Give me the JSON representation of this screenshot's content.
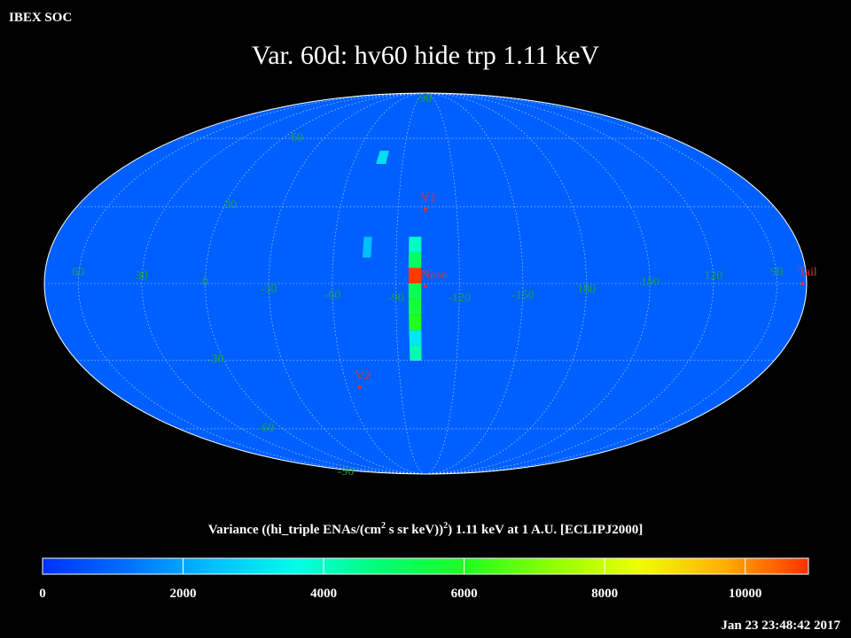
{
  "header": {
    "org": "IBEX SOC",
    "timestamp": "Jan 23 23:48:42 2017"
  },
  "chart_data": {
    "type": "skymap",
    "title": "Var. 60d: hv60 hide trp 1.11 keV",
    "background_value": 900,
    "lat_ticks": [
      90,
      60,
      30,
      -30,
      -60,
      -90
    ],
    "lon_ticks": [
      60,
      30,
      0,
      -30,
      -60,
      -90,
      -120,
      -150,
      180,
      150,
      120,
      90
    ],
    "cells": [
      {
        "lon": [
          -96,
          -102
        ],
        "lat": [
          18,
          12
        ],
        "value": 4000
      },
      {
        "lon": [
          -96,
          -102
        ],
        "lat": [
          12,
          6
        ],
        "value": 5000
      },
      {
        "lon": [
          -96,
          -102
        ],
        "lat": [
          6,
          0
        ],
        "value": 10800
      },
      {
        "lon": [
          -96,
          -102
        ],
        "lat": [
          0,
          -6
        ],
        "value": 5200
      },
      {
        "lon": [
          -96,
          -102
        ],
        "lat": [
          -6,
          -12
        ],
        "value": 5600
      },
      {
        "lon": [
          -96,
          -102
        ],
        "lat": [
          -12,
          -18
        ],
        "value": 6000
      },
      {
        "lon": [
          -96,
          -102
        ],
        "lat": [
          -18,
          -24
        ],
        "value": 3200
      },
      {
        "lon": [
          -96,
          -102
        ],
        "lat": [
          -24,
          -30
        ],
        "value": 4200
      },
      {
        "lon": [
          -74,
          -80
        ],
        "lat": [
          54,
          48
        ],
        "value": 3000
      },
      {
        "lon": [
          -74,
          -78
        ],
        "lat": [
          18,
          10
        ],
        "value": 2400
      }
    ],
    "markers": [
      {
        "name": "V1",
        "lon": -104,
        "lat": 29
      },
      {
        "name": "Nose",
        "lon": -104,
        "lat": -1
      },
      {
        "name": "V2",
        "lon": -67,
        "lat": -41
      },
      {
        "name": "Tail",
        "lon": 78,
        "lat": 0
      }
    ],
    "colorbar": {
      "label": [
        {
          "text": "Variance ((hi_triple ENAs/(cm",
          "sup": false
        },
        {
          "text": "2",
          "sup": true
        },
        {
          "text": " s sr keV))",
          "sup": false
        },
        {
          "text": "2",
          "sup": true
        },
        {
          "text": ") 1.11 keV at 1 A.U. [ECLIPJ2000]",
          "sup": false
        }
      ],
      "lim": [
        0,
        10900
      ],
      "ticks": [
        0,
        2000,
        4000,
        6000,
        8000,
        10000
      ],
      "colors": [
        "#0030ff",
        "#0070ff",
        "#00c0ff",
        "#00ffe8",
        "#00ff70",
        "#20ff20",
        "#90ff00",
        "#f0ff00",
        "#ffb000",
        "#ff3000"
      ]
    }
  }
}
